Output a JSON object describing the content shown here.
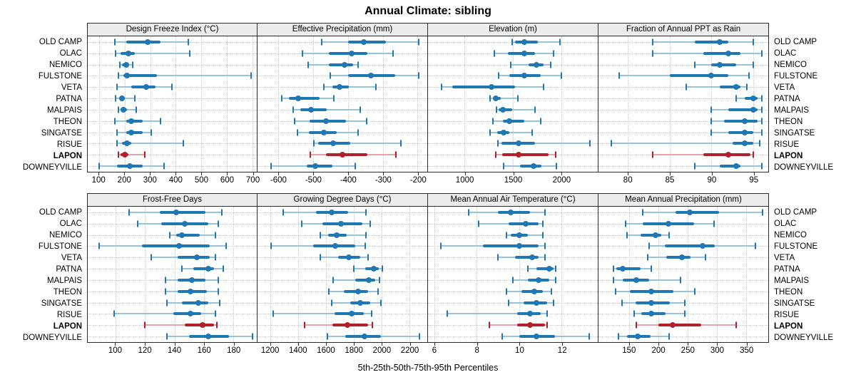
{
  "title": "Annual Climate: sibling",
  "footer": "5th-25th-50th-75th-95th Percentiles",
  "percentile_labels": [
    "5th",
    "25th",
    "50th",
    "75th",
    "95th"
  ],
  "stations": [
    "OLD CAMP",
    "OLAC",
    "NEMICO",
    "FULSTONE",
    "VETA",
    "PATNA",
    "MALPAIS",
    "THEON",
    "SINGATSE",
    "RISUE",
    "LAPON",
    "DOWNEYVILLE"
  ],
  "highlight_station": "LAPON",
  "colors": {
    "series": "#1f77b4",
    "series_light": "#96c4e0",
    "highlight": "#b2202b",
    "highlight_light": "#e7a4a6",
    "grid": "#c9c9c9",
    "strip_bg": "#ececec",
    "border": "#2b2b2b"
  },
  "chart_data": [
    {
      "type": "interval",
      "row": "top",
      "title": "Design Freeze Index (°C)",
      "axis": {
        "min": 55,
        "max": 718,
        "ticks": [
          100,
          200,
          300,
          400,
          500,
          600,
          700
        ]
      },
      "percentiles": [
        [
          160,
          205,
          290,
          340,
          450
        ],
        [
          165,
          185,
          215,
          240,
          455
        ],
        [
          180,
          190,
          205,
          215,
          230
        ],
        [
          175,
          195,
          210,
          325,
          695
        ],
        [
          170,
          225,
          285,
          320,
          385
        ],
        [
          165,
          180,
          190,
          200,
          240
        ],
        [
          175,
          190,
          195,
          210,
          245
        ],
        [
          160,
          205,
          225,
          270,
          340
        ],
        [
          170,
          205,
          225,
          270,
          305
        ],
        [
          170,
          190,
          210,
          225,
          430
        ],
        [
          175,
          185,
          200,
          215,
          280
        ],
        [
          100,
          170,
          220,
          270,
          355
        ]
      ]
    },
    {
      "type": "interval",
      "row": "top",
      "title": "Effective Precipitation (mm)",
      "axis": {
        "min": -660,
        "max": -172,
        "ticks": [
          -600,
          -500,
          -400,
          -300,
          -200
        ]
      },
      "percentiles": [
        [
          -475,
          -400,
          -355,
          -290,
          -197
        ],
        [
          -530,
          -455,
          -390,
          -345,
          -270
        ],
        [
          -515,
          -455,
          -410,
          -385,
          -370
        ],
        [
          -450,
          -400,
          -335,
          -265,
          -197
        ],
        [
          -470,
          -445,
          -425,
          -398,
          -320
        ],
        [
          -590,
          -570,
          -543,
          -482,
          -440
        ],
        [
          -558,
          -538,
          -507,
          -462,
          -365
        ],
        [
          -553,
          -511,
          -463,
          -405,
          -347
        ],
        [
          -546,
          -513,
          -470,
          -433,
          -370
        ],
        [
          -498,
          -485,
          -442,
          -394,
          -248
        ],
        [
          -508,
          -463,
          -417,
          -344,
          -262
        ],
        [
          -622,
          -519,
          -494,
          -445,
          -380
        ]
      ]
    },
    {
      "type": "interval",
      "row": "top",
      "title": "Elevation (m)",
      "axis": {
        "min": 620,
        "max": 2380,
        "ticks": [
          1000,
          1500,
          2000
        ]
      },
      "percentiles": [
        [
          1490,
          1525,
          1615,
          1760,
          1985
        ],
        [
          1310,
          1450,
          1615,
          1730,
          1920
        ],
        [
          1480,
          1660,
          1745,
          1815,
          1890
        ],
        [
          1355,
          1463,
          1615,
          1788,
          2000
        ],
        [
          760,
          875,
          1280,
          1520,
          1820
        ],
        [
          1260,
          1293,
          1325,
          1378,
          1550
        ],
        [
          1330,
          1355,
          1400,
          1490,
          1730
        ],
        [
          1293,
          1400,
          1460,
          1620,
          1790
        ],
        [
          1260,
          1340,
          1407,
          1463,
          1700
        ],
        [
          1346,
          1378,
          1556,
          1732,
          2300
        ],
        [
          1322,
          1390,
          1556,
          1873,
          1946
        ],
        [
          1407,
          1573,
          1712,
          1793,
          1950
        ]
      ]
    },
    {
      "type": "interval",
      "row": "top",
      "title": "Fraction of Annual PPT as Rain",
      "axis": {
        "min": 76.5,
        "max": 96.8,
        "ticks": [
          80,
          85,
          90,
          95
        ]
      },
      "percentiles": [
        [
          83,
          88,
          91,
          92,
          95
        ],
        [
          83,
          89,
          92,
          93.5,
          96
        ],
        [
          88,
          90,
          91,
          93,
          95
        ],
        [
          79,
          85,
          90,
          92,
          94.5
        ],
        [
          87,
          91,
          93,
          93.5,
          94.2
        ],
        [
          93,
          94,
          95,
          95.5,
          96
        ],
        [
          90,
          92,
          95,
          95.5,
          96
        ],
        [
          90,
          91.5,
          94,
          95.5,
          96
        ],
        [
          90,
          92,
          94,
          95,
          96
        ],
        [
          78,
          92.5,
          94,
          95,
          95.8
        ],
        [
          83,
          89,
          92,
          94.7,
          95
        ],
        [
          88,
          91,
          93,
          93.5,
          96
        ]
      ]
    },
    {
      "type": "interval",
      "row": "bottom",
      "title": "Frost-Free Days",
      "axis": {
        "min": 81,
        "max": 196,
        "ticks": [
          100,
          120,
          140,
          160,
          180
        ]
      },
      "percentiles": [
        [
          109,
          130,
          141,
          161,
          172
        ],
        [
          115,
          131,
          147,
          163,
          170
        ],
        [
          137,
          141,
          145,
          157,
          168
        ],
        [
          89,
          118,
          143,
          164,
          175
        ],
        [
          124,
          142,
          155,
          164,
          168
        ],
        [
          145,
          153,
          163,
          167,
          173
        ],
        [
          134,
          142,
          152,
          161,
          170
        ],
        [
          134,
          142,
          151,
          162,
          170
        ],
        [
          135,
          145,
          156,
          163,
          171
        ],
        [
          99,
          139,
          151,
          158,
          168
        ],
        [
          120,
          147,
          159,
          167,
          169
        ],
        [
          135,
          150,
          163,
          177,
          193
        ]
      ]
    },
    {
      "type": "interval",
      "row": "bottom",
      "title": "Growing Degree Days (°C)",
      "axis": {
        "min": 1110,
        "max": 2330,
        "ticks": [
          1200,
          1400,
          1600,
          1800,
          2000,
          2200
        ]
      },
      "percentiles": [
        [
          1297,
          1530,
          1645,
          1760,
          1890
        ],
        [
          1430,
          1578,
          1710,
          1865,
          1920
        ],
        [
          1560,
          1617,
          1680,
          1750,
          1890
        ],
        [
          1205,
          1508,
          1667,
          1810,
          1886
        ],
        [
          1563,
          1687,
          1768,
          1847,
          1906
        ],
        [
          1800,
          1882,
          1945,
          1983,
          2007
        ],
        [
          1655,
          1810,
          1910,
          1955,
          1985
        ],
        [
          1625,
          1731,
          1832,
          1903,
          1978
        ],
        [
          1645,
          1777,
          1847,
          1919,
          1998
        ],
        [
          1222,
          1662,
          1785,
          1872,
          1931
        ],
        [
          1450,
          1650,
          1755,
          1905,
          1933
        ],
        [
          1613,
          1740,
          1881,
          1995,
          2272
        ]
      ]
    },
    {
      "type": "interval",
      "row": "bottom",
      "title": "Mean Annual Air Temperature (°C)",
      "axis": {
        "min": 5.7,
        "max": 13.7,
        "ticks": [
          6,
          8,
          10,
          12
        ]
      },
      "percentiles": [
        [
          7.6,
          9.0,
          9.6,
          10.5,
          11.2
        ],
        [
          8.1,
          9.5,
          10.3,
          10.9,
          11.1
        ],
        [
          9.4,
          9.6,
          10.0,
          10.4,
          11.1
        ],
        [
          6.3,
          8.3,
          10.0,
          10.9,
          11.2
        ],
        [
          9.0,
          9.8,
          10.6,
          10.9,
          11.2
        ],
        [
          10.4,
          10.8,
          11.4,
          11.6,
          11.7
        ],
        [
          9.7,
          10.4,
          10.9,
          11.4,
          11.7
        ],
        [
          9.4,
          10.1,
          10.7,
          11.1,
          11.5
        ],
        [
          9.5,
          10.2,
          10.8,
          11.3,
          11.6
        ],
        [
          6.6,
          9.9,
          10.5,
          11.0,
          11.3
        ],
        [
          8.6,
          9.9,
          10.5,
          11.2,
          11.3
        ],
        [
          9.2,
          10.0,
          10.8,
          11.7,
          13.3
        ]
      ]
    },
    {
      "type": "interval",
      "row": "bottom",
      "title": "Mean Annual Precipitation (mm)",
      "axis": {
        "min": 98,
        "max": 388,
        "ticks": [
          150,
          200,
          250,
          300,
          350
        ]
      },
      "percentiles": [
        [
          173,
          229,
          254,
          304,
          378
        ],
        [
          144,
          174,
          218,
          261,
          296
        ],
        [
          147,
          170,
          195,
          205,
          219
        ],
        [
          185,
          211,
          276,
          297,
          366
        ],
        [
          182,
          214,
          240,
          255,
          281
        ],
        [
          124,
          129,
          140,
          170,
          188
        ],
        [
          124,
          139,
          163,
          184,
          238
        ],
        [
          127,
          152,
          188,
          226,
          262
        ],
        [
          138,
          161,
          188,
          220,
          246
        ],
        [
          159,
          171,
          188,
          212,
          245
        ],
        [
          162,
          200,
          225,
          273,
          333
        ],
        [
          132,
          147,
          165,
          187,
          219
        ]
      ]
    }
  ]
}
